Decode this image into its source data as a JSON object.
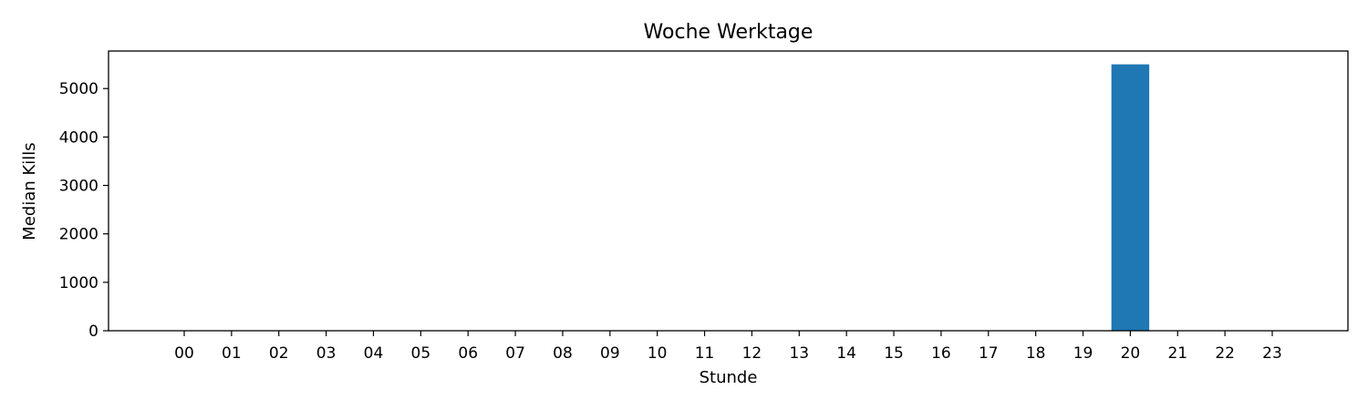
{
  "chart_data": {
    "type": "bar",
    "title": "Woche Werktage",
    "xlabel": "Stunde",
    "ylabel": "Median Kills",
    "categories": [
      "00",
      "01",
      "02",
      "03",
      "04",
      "05",
      "06",
      "07",
      "08",
      "09",
      "10",
      "11",
      "12",
      "13",
      "14",
      "15",
      "16",
      "17",
      "18",
      "19",
      "20",
      "21",
      "22",
      "23"
    ],
    "values": [
      0,
      0,
      0,
      0,
      0,
      0,
      0,
      0,
      0,
      0,
      0,
      0,
      0,
      0,
      0,
      0,
      0,
      0,
      0,
      0,
      5500,
      0,
      0,
      0
    ],
    "ylim": [
      0,
      5775
    ],
    "yticks": [
      0,
      1000,
      2000,
      3000,
      4000,
      5000
    ],
    "grid": false,
    "bar_color": "#1f77b4"
  }
}
